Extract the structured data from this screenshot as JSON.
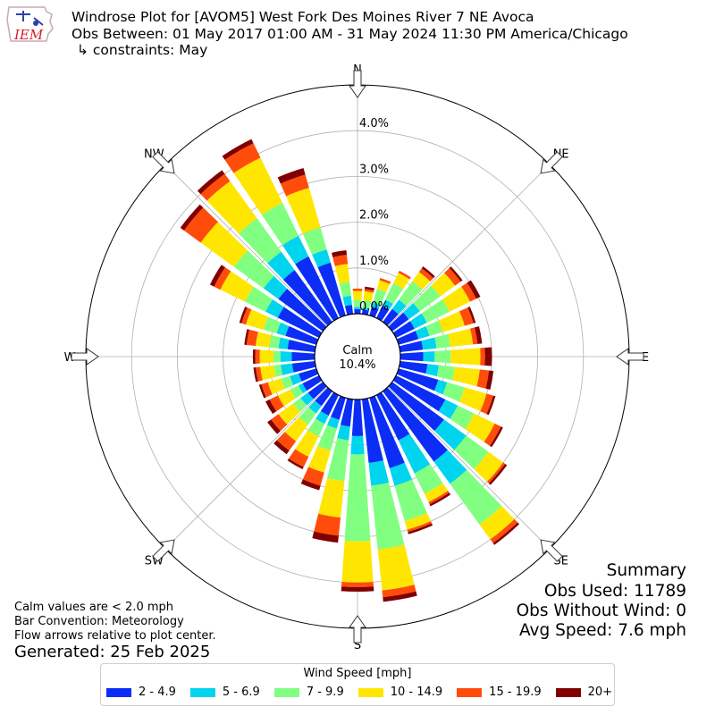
{
  "header": {
    "title": "Windrose Plot for [AVOM5] West Fork Des Moines River 7 NE Avoca",
    "period": "Obs Between: 01 May 2017 01:00 AM - 31 May 2024 11:30 PM America/Chicago",
    "constraints": "↳ constraints: May",
    "logo_text": "IEM"
  },
  "summary": {
    "heading": "Summary",
    "obs_used": "Obs Used: 11789",
    "obs_without_wind": "Obs Without Wind: 0",
    "avg_speed": "Avg Speed: 7.6 mph"
  },
  "notes": {
    "calm": "Calm values are < 2.0 mph",
    "convention": "Bar Convention: Meteorology",
    "flow": "Flow arrows relative to plot center.",
    "generated": "Generated: 25 Feb 2025"
  },
  "chart_data": {
    "type": "windrose",
    "center_label": "Calm",
    "calm_percent": "10.4%",
    "radial_ticks": [
      0,
      1,
      2,
      3,
      4
    ],
    "radial_tick_labels": [
      "0.0%",
      "1.0%",
      "2.0%",
      "3.0%",
      "4.0%"
    ],
    "radial_max": 5.0,
    "compass_labels": [
      "N",
      "NE",
      "E",
      "SE",
      "S",
      "SW",
      "W",
      "NW"
    ],
    "legend_title": "Wind Speed [mph]",
    "bins": [
      {
        "label": "2 - 4.9",
        "color": "#0b2df5"
      },
      {
        "label": "5 - 6.9",
        "color": "#00d4ef"
      },
      {
        "label": "7 - 9.9",
        "color": "#80ff80"
      },
      {
        "label": "10 - 14.9",
        "color": "#ffe600"
      },
      {
        "label": "15 - 19.9",
        "color": "#ff4c0a"
      },
      {
        "label": "20+",
        "color": "#800000"
      }
    ],
    "directions_deg": [
      0,
      10,
      20,
      30,
      40,
      50,
      60,
      70,
      80,
      90,
      100,
      110,
      120,
      130,
      140,
      150,
      160,
      170,
      180,
      190,
      200,
      210,
      220,
      230,
      240,
      250,
      260,
      270,
      280,
      290,
      300,
      310,
      320,
      330,
      340,
      350
    ],
    "cumulative_percent": [
      [
        0.1,
        0.15,
        0.3,
        0.5,
        0.55,
        0.55
      ],
      [
        0.1,
        0.15,
        0.3,
        0.5,
        0.55,
        0.6
      ],
      [
        0.2,
        0.3,
        0.6,
        0.8,
        0.85,
        0.85
      ],
      [
        0.3,
        0.45,
        0.85,
        1.1,
        1.15,
        1.15
      ],
      [
        0.35,
        0.6,
        1.1,
        1.35,
        1.45,
        1.5
      ],
      [
        0.45,
        0.75,
        1.3,
        1.7,
        1.85,
        1.9
      ],
      [
        0.45,
        0.75,
        1.3,
        1.8,
        1.95,
        2.05
      ],
      [
        0.45,
        0.7,
        1.0,
        1.5,
        1.7,
        1.75
      ],
      [
        0.5,
        0.8,
        1.1,
        1.6,
        1.7,
        1.8
      ],
      [
        0.5,
        0.75,
        1.1,
        1.75,
        1.85,
        2.0
      ],
      [
        0.6,
        0.85,
        1.2,
        1.75,
        1.95,
        2.05
      ],
      [
        0.9,
        1.1,
        1.5,
        2.0,
        2.15,
        2.2
      ],
      [
        1.2,
        1.5,
        1.9,
        2.4,
        2.55,
        2.6
      ],
      [
        1.4,
        2.0,
        2.6,
        3.0,
        3.05,
        3.1
      ],
      [
        1.9,
        2.5,
        3.6,
        4.0,
        4.1,
        4.15
      ],
      [
        1.1,
        1.9,
        2.4,
        2.6,
        2.65,
        2.7
      ],
      [
        1.6,
        2.0,
        2.8,
        3.0,
        3.05,
        3.1
      ],
      [
        1.4,
        1.9,
        3.3,
        4.2,
        4.35,
        4.45
      ],
      [
        0.8,
        1.2,
        3.1,
        4.0,
        4.1,
        4.2
      ],
      [
        0.6,
        0.9,
        1.8,
        2.6,
        3.0,
        3.15
      ],
      [
        0.5,
        0.7,
        1.2,
        1.7,
        2.0,
        2.1
      ],
      [
        0.5,
        0.7,
        1.0,
        1.5,
        1.75,
        1.8
      ],
      [
        0.4,
        0.6,
        0.9,
        1.35,
        1.6,
        1.7
      ],
      [
        0.4,
        0.6,
        0.8,
        1.2,
        1.4,
        1.5
      ],
      [
        0.4,
        0.5,
        0.7,
        1.0,
        1.2,
        1.3
      ],
      [
        0.4,
        0.6,
        0.8,
        1.1,
        1.25,
        1.3
      ],
      [
        0.5,
        0.75,
        0.9,
        1.2,
        1.3,
        1.35
      ],
      [
        0.5,
        0.75,
        0.9,
        1.2,
        1.3,
        1.35
      ],
      [
        0.6,
        0.8,
        1.0,
        1.3,
        1.5,
        1.55
      ],
      [
        0.7,
        0.9,
        1.2,
        1.6,
        1.7,
        1.75
      ],
      [
        1.0,
        1.3,
        1.8,
        2.4,
        2.55,
        2.65
      ],
      [
        1.2,
        1.6,
        2.4,
        3.3,
        3.75,
        3.85
      ],
      [
        1.4,
        1.9,
        2.8,
        3.8,
        4.0,
        4.1
      ],
      [
        1.5,
        2.0,
        2.8,
        3.9,
        4.25,
        4.35
      ],
      [
        1.2,
        1.5,
        2.0,
        2.9,
        3.2,
        3.35
      ],
      [
        0.2,
        0.4,
        0.7,
        1.1,
        1.3,
        1.4
      ]
    ]
  }
}
